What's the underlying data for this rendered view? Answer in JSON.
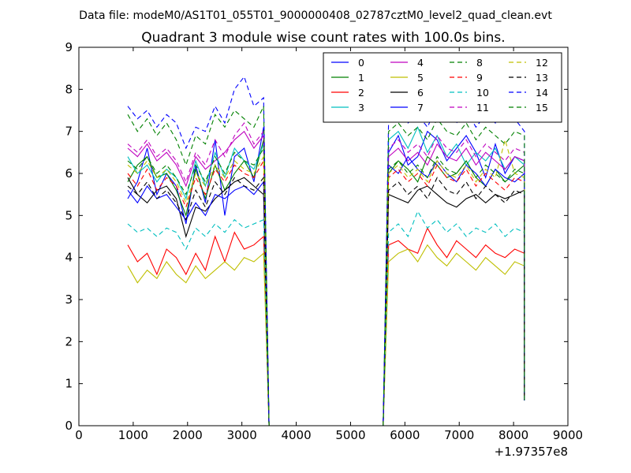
{
  "figure": {
    "suptitle": "Data file: modeM0/AS1T01_055T01_9000000408_02787cztM0_level2_quad_clean.evt"
  },
  "chart_data": {
    "type": "line",
    "title": "Quadrant 3 module wise count rates with 100.0s bins.",
    "xlabel": "",
    "ylabel": "",
    "xlim": [
      0,
      9000
    ],
    "ylim": [
      0,
      9
    ],
    "x_offset_label": "+1.97357e8",
    "x_ticks": [
      "0",
      "1000",
      "2000",
      "3000",
      "4000",
      "5000",
      "6000",
      "7000",
      "8000",
      "9000"
    ],
    "y_ticks": [
      "0",
      "1",
      "2",
      "3",
      "4",
      "5",
      "6",
      "7",
      "8",
      "9"
    ],
    "grid": false,
    "legend_position": "top-right",
    "legend_columns": 4,
    "x_segments": [
      [
        900,
        3400
      ],
      [
        5700,
        8200
      ]
    ],
    "series": [
      {
        "name": "0",
        "color": "#0000ff",
        "dash": "solid",
        "first_segment": [
          5.4,
          5.8,
          6.6,
          5.5,
          6.0,
          5.7,
          4.8,
          6.2,
          5.3,
          6.8,
          5.0,
          6.4,
          6.6,
          5.8,
          7.1
        ],
        "second_segment": [
          6.5,
          6.9,
          6.2,
          6.4,
          7.0,
          6.8,
          6.3,
          6.6,
          6.9,
          6.5,
          5.9,
          6.7,
          6.0,
          6.4,
          6.3
        ]
      },
      {
        "name": "1",
        "color": "#008000",
        "dash": "solid",
        "first_segment": [
          5.8,
          6.2,
          6.4,
          5.9,
          6.0,
          5.6,
          5.0,
          6.1,
          5.4,
          6.2,
          5.6,
          6.0,
          6.3,
          5.9,
          6.8
        ],
        "second_segment": [
          6.0,
          6.3,
          6.1,
          5.8,
          6.4,
          6.2,
          5.9,
          6.0,
          6.3,
          5.9,
          5.7,
          6.1,
          5.8,
          6.0,
          6.2
        ]
      },
      {
        "name": "2",
        "color": "#ff0000",
        "dash": "solid",
        "first_segment": [
          4.3,
          3.9,
          4.1,
          3.6,
          4.2,
          4.0,
          3.6,
          4.1,
          3.7,
          4.5,
          3.9,
          4.6,
          4.2,
          4.3,
          4.5
        ],
        "second_segment": [
          4.3,
          4.4,
          4.2,
          4.1,
          4.7,
          4.3,
          4.0,
          4.4,
          4.2,
          4.0,
          4.3,
          4.1,
          4.0,
          4.2,
          4.1
        ]
      },
      {
        "name": "3",
        "color": "#00bfbf",
        "dash": "solid",
        "first_segment": [
          6.4,
          6.0,
          6.2,
          5.8,
          6.1,
          5.9,
          5.4,
          6.3,
          5.7,
          6.5,
          5.9,
          6.6,
          6.3,
          6.1,
          6.7
        ],
        "second_segment": [
          6.8,
          7.0,
          6.6,
          7.1,
          6.5,
          6.9,
          6.4,
          6.7,
          6.2,
          6.5,
          6.3,
          6.6,
          6.1,
          6.4,
          6.2
        ]
      },
      {
        "name": "4",
        "color": "#bf00bf",
        "dash": "solid",
        "first_segment": [
          6.6,
          6.4,
          6.7,
          6.3,
          6.5,
          6.2,
          5.7,
          6.4,
          6.1,
          6.3,
          6.5,
          6.8,
          7.0,
          6.6,
          6.9
        ],
        "second_segment": [
          6.4,
          6.6,
          6.3,
          6.5,
          6.2,
          6.7,
          6.4,
          6.3,
          6.6,
          6.2,
          6.5,
          6.3,
          6.1,
          6.4,
          6.3
        ]
      },
      {
        "name": "5",
        "color": "#bfbf00",
        "dash": "solid",
        "first_segment": [
          3.8,
          3.4,
          3.7,
          3.5,
          3.9,
          3.6,
          3.4,
          3.8,
          3.5,
          3.7,
          3.9,
          3.7,
          4.0,
          3.9,
          4.1
        ],
        "second_segment": [
          3.9,
          4.1,
          4.2,
          3.9,
          4.3,
          4.0,
          3.8,
          4.1,
          3.9,
          3.7,
          4.0,
          3.8,
          3.6,
          3.9,
          3.8
        ]
      },
      {
        "name": "6",
        "color": "#000000",
        "dash": "solid",
        "first_segment": [
          5.9,
          5.5,
          5.3,
          5.6,
          5.7,
          5.4,
          4.5,
          5.2,
          5.1,
          5.4,
          5.6,
          5.8,
          5.9,
          5.7,
          5.5
        ],
        "second_segment": [
          5.5,
          5.4,
          5.3,
          5.6,
          5.7,
          5.5,
          5.3,
          5.2,
          5.4,
          5.5,
          5.3,
          5.5,
          5.4,
          5.5,
          5.6
        ]
      },
      {
        "name": "7",
        "color": "#0000ff",
        "dash": "solid",
        "first_segment": [
          5.6,
          5.3,
          5.7,
          5.4,
          5.5,
          5.2,
          4.9,
          5.3,
          5.0,
          5.5,
          5.4,
          5.6,
          5.7,
          5.5,
          5.8
        ],
        "second_segment": [
          6.2,
          6.0,
          6.4,
          6.1,
          5.9,
          6.3,
          6.0,
          5.8,
          6.2,
          6.0,
          5.7,
          6.1,
          5.9,
          5.8,
          6.0
        ]
      },
      {
        "name": "8",
        "color": "#008000",
        "dash": "dashed",
        "first_segment": [
          6.3,
          6.1,
          6.4,
          6.0,
          6.2,
          5.9,
          5.5,
          6.2,
          5.8,
          6.4,
          6.0,
          6.5,
          6.3,
          6.2,
          6.6
        ],
        "second_segment": [
          6.1,
          6.3,
          6.0,
          6.2,
          5.9,
          6.4,
          6.1,
          6.0,
          6.3,
          5.9,
          6.2,
          6.0,
          5.8,
          6.1,
          6.0
        ]
      },
      {
        "name": "9",
        "color": "#ff0000",
        "dash": "dashed",
        "first_segment": [
          6.0,
          5.7,
          6.1,
          5.6,
          5.9,
          5.7,
          5.2,
          5.9,
          5.5,
          6.1,
          5.8,
          6.2,
          6.0,
          5.9,
          6.3
        ],
        "second_segment": [
          5.9,
          6.1,
          5.8,
          6.0,
          5.7,
          6.2,
          5.9,
          5.8,
          6.1,
          5.7,
          6.0,
          5.8,
          5.6,
          5.9,
          5.8
        ]
      },
      {
        "name": "10",
        "color": "#00bfbf",
        "dash": "dashed",
        "first_segment": [
          4.8,
          4.6,
          4.7,
          4.5,
          4.7,
          4.6,
          4.2,
          4.7,
          4.5,
          4.8,
          4.6,
          4.9,
          4.7,
          4.8,
          4.9
        ],
        "second_segment": [
          4.6,
          4.8,
          4.5,
          5.1,
          4.7,
          4.9,
          4.6,
          4.8,
          4.5,
          4.7,
          4.6,
          4.8,
          4.5,
          4.7,
          4.6
        ]
      },
      {
        "name": "11",
        "color": "#bf00bf",
        "dash": "dashed",
        "first_segment": [
          6.7,
          6.5,
          6.8,
          6.4,
          6.6,
          6.3,
          5.8,
          6.5,
          6.2,
          6.8,
          6.4,
          6.9,
          7.2,
          6.7,
          7.0
        ],
        "second_segment": [
          6.6,
          6.8,
          6.5,
          6.7,
          6.4,
          6.9,
          6.6,
          6.5,
          6.8,
          6.4,
          6.7,
          6.5,
          6.3,
          6.6,
          6.5
        ]
      },
      {
        "name": "12",
        "color": "#bfbf00",
        "dash": "dashed",
        "first_segment": [
          6.2,
          6.0,
          6.3,
          5.9,
          6.1,
          5.8,
          5.3,
          6.0,
          5.7,
          6.2,
          5.9,
          6.3,
          6.1,
          6.0,
          6.4
        ],
        "second_segment": [
          6.0,
          6.2,
          5.9,
          6.1,
          5.8,
          6.3,
          6.0,
          5.9,
          6.2,
          5.8,
          6.1,
          5.9,
          6.8,
          6.0,
          5.9
        ]
      },
      {
        "name": "13",
        "color": "#000000",
        "dash": "dashed",
        "first_segment": [
          5.7,
          5.5,
          5.8,
          5.4,
          5.6,
          5.3,
          4.9,
          5.6,
          5.2,
          5.8,
          5.5,
          5.9,
          5.7,
          5.6,
          5.9
        ],
        "second_segment": [
          5.6,
          5.8,
          5.5,
          5.7,
          5.4,
          5.9,
          5.6,
          5.5,
          5.8,
          5.4,
          5.7,
          5.5,
          5.3,
          5.6,
          5.5
        ]
      },
      {
        "name": "14",
        "color": "#0000ff",
        "dash": "dashed",
        "first_segment": [
          7.6,
          7.3,
          7.5,
          7.1,
          7.4,
          7.2,
          6.6,
          7.1,
          7.0,
          7.6,
          7.2,
          8.0,
          8.3,
          7.6,
          7.8
        ],
        "second_segment": [
          7.3,
          7.5,
          7.2,
          7.4,
          7.1,
          7.6,
          7.3,
          7.2,
          7.5,
          7.1,
          7.4,
          7.2,
          7.9,
          7.3,
          7.0
        ]
      },
      {
        "name": "15",
        "color": "#008000",
        "dash": "dashed",
        "first_segment": [
          7.4,
          7.0,
          7.3,
          6.9,
          7.2,
          6.8,
          6.2,
          6.9,
          6.7,
          7.4,
          7.1,
          7.5,
          7.3,
          7.1,
          7.6
        ],
        "second_segment": [
          7.0,
          7.2,
          6.9,
          7.1,
          6.8,
          7.3,
          7.0,
          6.9,
          7.2,
          6.8,
          7.1,
          6.9,
          6.7,
          7.0,
          6.9
        ]
      }
    ]
  }
}
